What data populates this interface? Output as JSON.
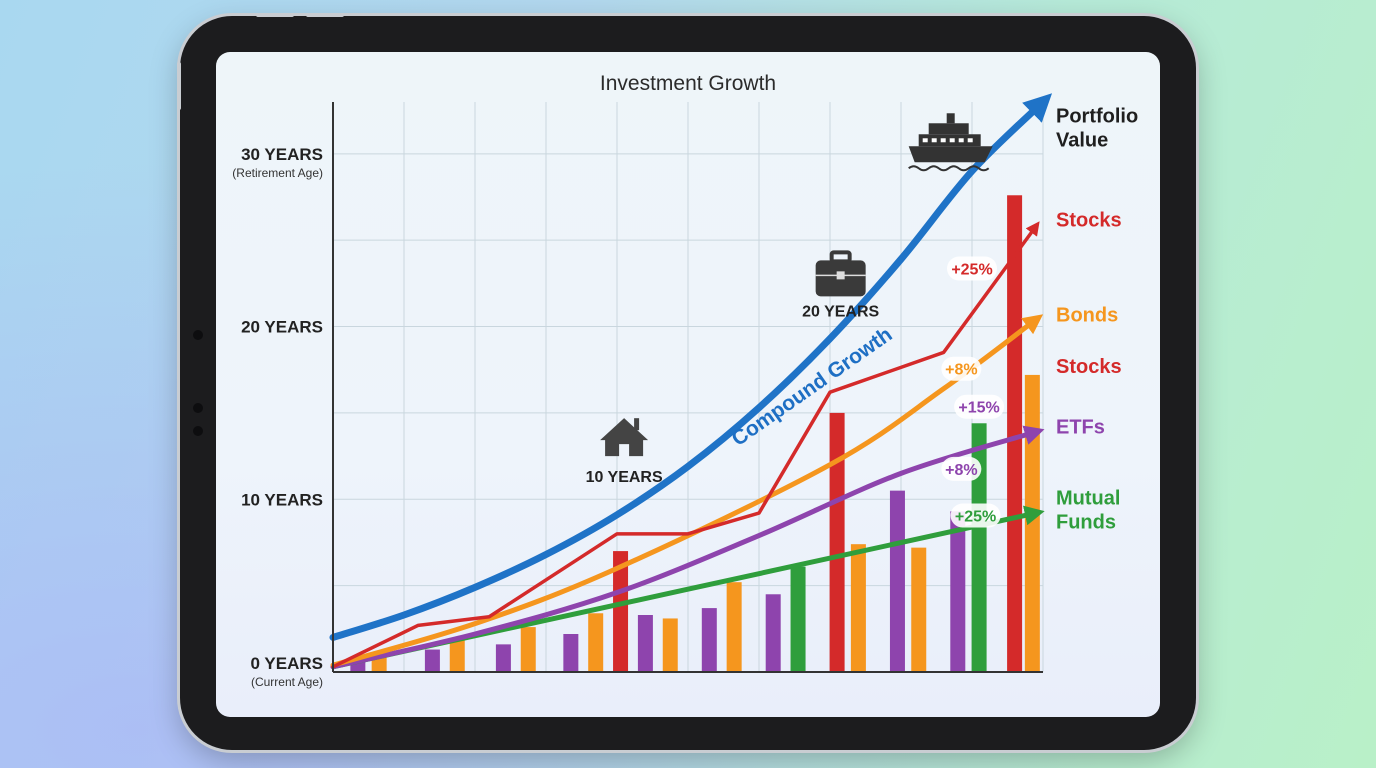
{
  "colors": {
    "portfolio": "#1f73c7",
    "stocks": "#d42a2a",
    "bonds": "#f5961e",
    "etfs": "#8e44ad",
    "mutual_funds": "#2f9e3c",
    "grid": "#c9d6de",
    "axis": "#333333"
  },
  "icons": [
    "house-icon",
    "briefcase-icon",
    "cruise-ship-icon"
  ],
  "chart_data": {
    "type": "bar",
    "title": "Investment Growth",
    "y_ticks": [
      {
        "value": 0,
        "label": "0 YEARS",
        "sub": "(Current Age)"
      },
      {
        "value": 10,
        "label": "10 YEARS",
        "sub": ""
      },
      {
        "value": 20,
        "label": "20 YEARS",
        "sub": ""
      },
      {
        "value": 30,
        "label": "30 YEARS",
        "sub": "(Retirement Age)"
      }
    ],
    "ylim": [
      0,
      33
    ],
    "xlim": [
      0,
      10
    ],
    "grid": true,
    "milestones": [
      {
        "label": "10 YEARS",
        "icon": "house-icon",
        "x": 4.1,
        "y": 11.8
      },
      {
        "label": "20 YEARS",
        "icon": "briefcase-icon",
        "x": 7.15,
        "y": 21.4
      },
      {
        "label": "",
        "icon": "cruise-ship-icon",
        "x": 8.7,
        "y": 30.9
      }
    ],
    "curve_label": "Compound Growth",
    "legend": [
      {
        "text": "Portfolio Value",
        "color": "#1f1f1f",
        "y": 31.8
      },
      {
        "text": "Stocks",
        "color": "#d42a2a",
        "y": 25.8
      },
      {
        "text": "Bonds",
        "color": "#f5961e",
        "y": 20.3
      },
      {
        "text": "Stocks",
        "color": "#d42a2a",
        "y": 17.3
      },
      {
        "text": "ETFs",
        "color": "#8e44ad",
        "y": 13.8
      },
      {
        "text": "Mutual Funds",
        "color": "#2f9e3c",
        "y": 9.7
      }
    ],
    "series": [
      {
        "key": "portfolio",
        "x": [
          0,
          1,
          2,
          3,
          4,
          5,
          6,
          7,
          8,
          9,
          10
        ],
        "values": [
          2.0,
          3.3,
          4.9,
          6.8,
          9.1,
          11.9,
          15.3,
          19.3,
          23.9,
          29.0,
          33.0
        ]
      },
      {
        "key": "stocks",
        "x": [
          0,
          1.2,
          2.2,
          4.0,
          5.0,
          6.0,
          7.0,
          8.6,
          9.9
        ],
        "values": [
          0.3,
          2.7,
          3.2,
          8.0,
          8.0,
          9.2,
          16.2,
          18.5,
          25.8
        ]
      },
      {
        "key": "bonds",
        "x": [
          0,
          2.0,
          4.0,
          7.0,
          8.6,
          9.9
        ],
        "values": [
          0.4,
          2.8,
          6.0,
          12.0,
          16.4,
          20.4
        ]
      },
      {
        "key": "etfs",
        "x": [
          0,
          2.0,
          4.0,
          6.0,
          8.0,
          9.9
        ],
        "values": [
          0.3,
          2.2,
          4.6,
          7.9,
          11.5,
          13.9
        ]
      },
      {
        "key": "mutual_funds",
        "x": [
          0,
          9.9
        ],
        "values": [
          0.3,
          9.2
        ]
      }
    ],
    "bars": [
      {
        "x": 0.35,
        "value": 0.6,
        "key": "etfs"
      },
      {
        "x": 0.65,
        "value": 1.1,
        "key": "bonds"
      },
      {
        "x": 1.4,
        "value": 1.3,
        "key": "etfs"
      },
      {
        "x": 1.75,
        "value": 1.9,
        "key": "bonds"
      },
      {
        "x": 2.4,
        "value": 1.6,
        "key": "etfs"
      },
      {
        "x": 2.75,
        "value": 2.6,
        "key": "bonds"
      },
      {
        "x": 3.35,
        "value": 2.2,
        "key": "etfs"
      },
      {
        "x": 3.7,
        "value": 3.4,
        "key": "bonds"
      },
      {
        "x": 4.05,
        "value": 7.0,
        "key": "stocks"
      },
      {
        "x": 4.4,
        "value": 3.3,
        "key": "etfs"
      },
      {
        "x": 4.75,
        "value": 3.1,
        "key": "bonds"
      },
      {
        "x": 5.3,
        "value": 3.7,
        "key": "etfs"
      },
      {
        "x": 5.65,
        "value": 5.2,
        "key": "bonds"
      },
      {
        "x": 6.2,
        "value": 4.5,
        "key": "etfs"
      },
      {
        "x": 6.55,
        "value": 6.1,
        "key": "mutual_funds"
      },
      {
        "x": 7.1,
        "value": 15.0,
        "key": "stocks"
      },
      {
        "x": 7.4,
        "value": 7.4,
        "key": "bonds"
      },
      {
        "x": 7.95,
        "value": 10.5,
        "key": "etfs"
      },
      {
        "x": 8.25,
        "value": 7.2,
        "key": "bonds"
      },
      {
        "x": 8.8,
        "value": 9.3,
        "key": "etfs"
      },
      {
        "x": 9.1,
        "value": 14.4,
        "key": "mutual_funds"
      },
      {
        "x": 9.6,
        "value": 27.6,
        "key": "stocks"
      },
      {
        "x": 9.85,
        "value": 17.2,
        "key": "bonds"
      }
    ],
    "annotations": [
      {
        "text": "+25%",
        "color": "#d42a2a",
        "x": 9.0,
        "y": 23.3
      },
      {
        "text": "+8%",
        "color": "#f5961e",
        "x": 8.85,
        "y": 17.5
      },
      {
        "text": "+15%",
        "color": "#8e44ad",
        "x": 9.1,
        "y": 15.3
      },
      {
        "text": "+8%",
        "color": "#8e44ad",
        "x": 8.85,
        "y": 11.7
      },
      {
        "text": "+25%",
        "color": "#2f9e3c",
        "x": 9.05,
        "y": 9.0
      }
    ]
  }
}
